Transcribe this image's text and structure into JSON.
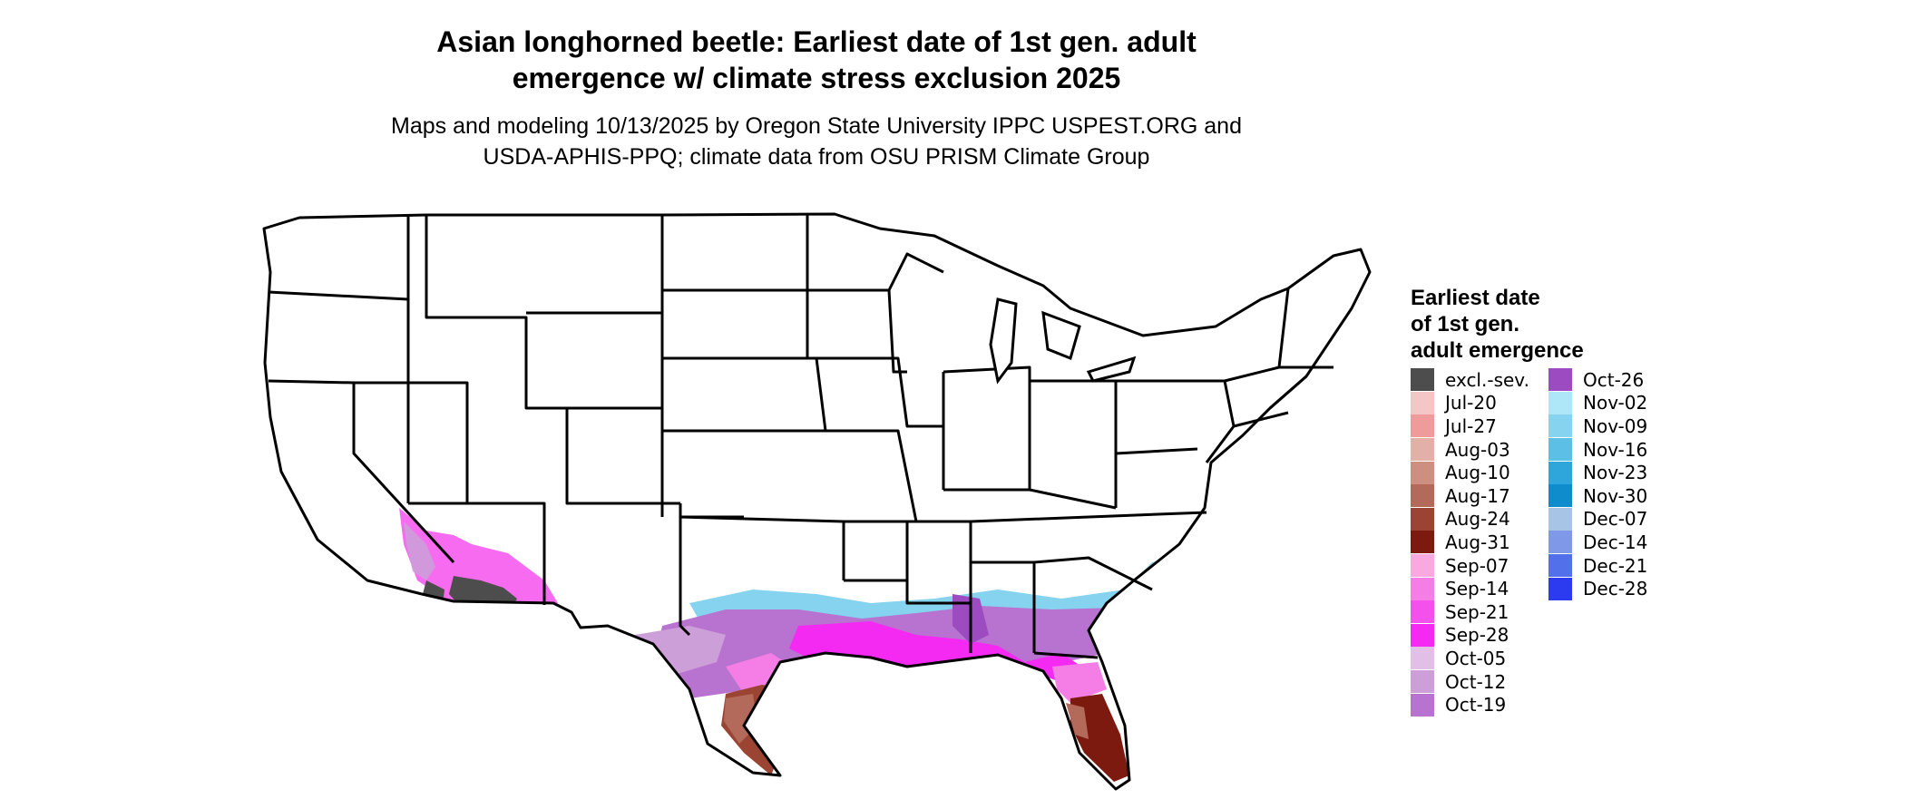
{
  "title_line1": "Asian longhorned beetle: Earliest date of 1st gen. adult",
  "title_line2": "emergence w/ climate stress exclusion 2025",
  "subtitle_line1": "Maps and modeling 10/13/2025 by Oregon State University IPPC USPEST.ORG and",
  "subtitle_line2": "USDA-APHIS-PPQ; climate data from OSU PRISM Climate Group",
  "legend": {
    "title_line1": "Earliest date",
    "title_line2": "of 1st gen.",
    "title_line3": "adult emergence",
    "items": [
      {
        "label": "excl.-sev.",
        "color": "#4d4d4d"
      },
      {
        "label": "Jul-20",
        "color": "#f4c6c6"
      },
      {
        "label": "Jul-27",
        "color": "#f09b9b"
      },
      {
        "label": "Aug-03",
        "color": "#e2b0a6"
      },
      {
        "label": "Aug-10",
        "color": "#cc8f80"
      },
      {
        "label": "Aug-17",
        "color": "#b36a5a"
      },
      {
        "label": "Aug-24",
        "color": "#9c4433"
      },
      {
        "label": "Aug-31",
        "color": "#7d1a10"
      },
      {
        "label": "Sep-07",
        "color": "#f9a9df"
      },
      {
        "label": "Sep-14",
        "color": "#f57ee6"
      },
      {
        "label": "Sep-21",
        "color": "#f451ec"
      },
      {
        "label": "Sep-28",
        "color": "#f42af3"
      },
      {
        "label": "Oct-05",
        "color": "#e2bfe6"
      },
      {
        "label": "Oct-12",
        "color": "#cd9fd9"
      },
      {
        "label": "Oct-19",
        "color": "#b773cf"
      },
      {
        "label": "Oct-26",
        "color": "#9c4bc0"
      },
      {
        "label": "Nov-02",
        "color": "#aee7f8"
      },
      {
        "label": "Nov-09",
        "color": "#86d3ef"
      },
      {
        "label": "Nov-16",
        "color": "#5cbfe6"
      },
      {
        "label": "Nov-23",
        "color": "#2ea6dc"
      },
      {
        "label": "Nov-30",
        "color": "#0f8ccc"
      },
      {
        "label": "Dec-07",
        "color": "#a7c3e6"
      },
      {
        "label": "Dec-14",
        "color": "#7f99e8"
      },
      {
        "label": "Dec-21",
        "color": "#5170ea"
      },
      {
        "label": "Dec-28",
        "color": "#2c3bf0"
      }
    ]
  },
  "map": {
    "region": "Contiguous United States",
    "state_borders": true,
    "regions_colored": [
      {
        "area": "Southern Arizona / Southern California desert",
        "dominant_classes": [
          "excl.-sev.",
          "Sep-21",
          "Sep-28",
          "Oct-12"
        ]
      },
      {
        "area": "South Texas",
        "dominant_classes": [
          "Aug-24",
          "Aug-31",
          "Aug-17"
        ]
      },
      {
        "area": "Central Texas / Gulf Coast",
        "dominant_classes": [
          "Oct-12",
          "Oct-19",
          "Sep-28",
          "Nov-02"
        ]
      },
      {
        "area": "Louisiana / Mississippi coast",
        "dominant_classes": [
          "Sep-28",
          "Sep-21"
        ]
      },
      {
        "area": "Florida peninsula",
        "dominant_classes": [
          "Aug-24",
          "Aug-31",
          "Sep-14"
        ]
      },
      {
        "area": "Georgia / South Carolina",
        "dominant_classes": [
          "Oct-12",
          "Oct-19",
          "Nov-09"
        ]
      }
    ]
  }
}
